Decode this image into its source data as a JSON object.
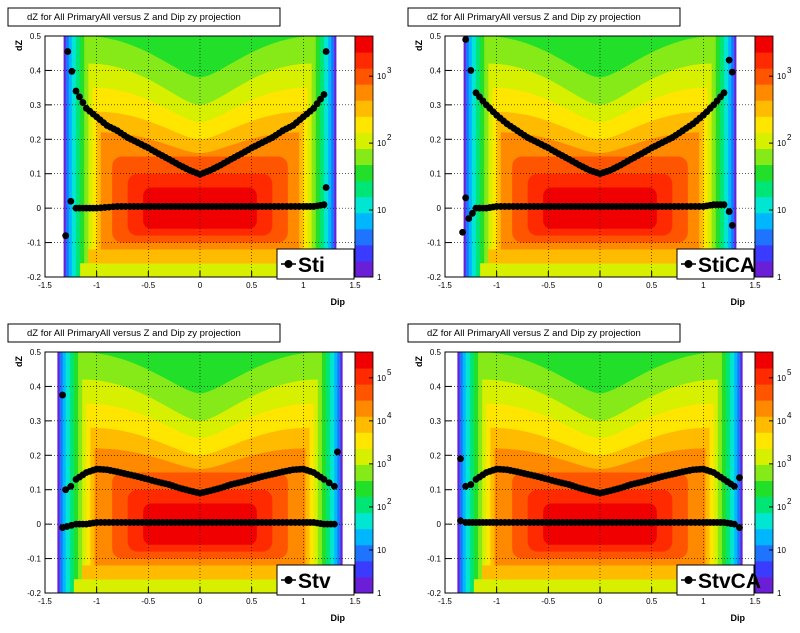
{
  "footer_text": "",
  "chart_data": [
    {
      "type": "heatmap",
      "title": "dZ for All PrimaryAll versus Z and Dip zy projection",
      "xlabel": "Dip",
      "ylabel": "dZ",
      "xlim": [
        -1.5,
        1.5
      ],
      "ylim": [
        -0.2,
        0.5
      ],
      "xticks": [
        "-1.5",
        "-1",
        "-0.5",
        "0",
        "0.5",
        "1",
        "1.5"
      ],
      "yticks": [
        "-0.2",
        "-0.1",
        "0",
        "0.1",
        "0.2",
        "0.3",
        "0.4",
        "0.5"
      ],
      "zscale": "log",
      "zticks": [
        "1",
        "10",
        "10 2",
        "10 3"
      ],
      "legend": "Sti",
      "grid": true,
      "series": [
        {
          "role": "sigma",
          "x": [
            -1.28,
            -1.2,
            -1.1,
            -1.0,
            -0.9,
            -0.8,
            -0.7,
            -0.6,
            -0.5,
            -0.4,
            -0.3,
            -0.2,
            -0.1,
            0,
            0.1,
            0.2,
            0.3,
            0.4,
            0.5,
            0.6,
            0.7,
            0.8,
            0.9,
            1.0,
            1.1,
            1.2,
            1.22
          ],
          "y": [
            0.455,
            0.34,
            0.29,
            0.265,
            0.24,
            0.225,
            0.205,
            0.19,
            0.175,
            0.158,
            0.142,
            0.125,
            0.11,
            0.098,
            0.11,
            0.125,
            0.142,
            0.158,
            0.175,
            0.19,
            0.205,
            0.225,
            0.24,
            0.265,
            0.29,
            0.33,
            0.455
          ]
        },
        {
          "role": "mean",
          "x": [
            -1.3,
            -1.25,
            -1.2,
            -1.1,
            -1.0,
            -0.8,
            -0.6,
            -0.4,
            -0.2,
            0,
            0.2,
            0.4,
            0.6,
            0.8,
            1.0,
            1.1,
            1.2,
            1.22
          ],
          "y": [
            -0.08,
            0.02,
            0.0,
            0.0,
            0.0,
            0.005,
            0.005,
            0.005,
            0.005,
            0.005,
            0.005,
            0.005,
            0.005,
            0.005,
            0.005,
            0.005,
            0.01,
            0.06
          ]
        }
      ]
    },
    {
      "type": "heatmap",
      "title": "dZ for All PrimaryAll versus Z and Dip zy projection",
      "xlabel": "Dip",
      "ylabel": "dZ",
      "xlim": [
        -1.5,
        1.5
      ],
      "ylim": [
        -0.2,
        0.5
      ],
      "xticks": [
        "-1.5",
        "-1",
        "-0.5",
        "0",
        "0.5",
        "1",
        "1.5"
      ],
      "yticks": [
        "-0.2",
        "-0.1",
        "0",
        "0.1",
        "0.2",
        "0.3",
        "0.4",
        "0.5"
      ],
      "zscale": "log",
      "zticks": [
        "1",
        "10",
        "10 2",
        "10 3"
      ],
      "legend": "StiCA",
      "grid": true,
      "series": [
        {
          "role": "sigma",
          "x": [
            -1.3,
            -1.25,
            -1.2,
            -1.1,
            -1.0,
            -0.9,
            -0.8,
            -0.7,
            -0.6,
            -0.5,
            -0.4,
            -0.3,
            -0.2,
            -0.1,
            0,
            0.1,
            0.2,
            0.3,
            0.4,
            0.5,
            0.6,
            0.7,
            0.8,
            0.9,
            1.0,
            1.1,
            1.2,
            1.25,
            1.28
          ],
          "y": [
            0.49,
            0.4,
            0.335,
            0.3,
            0.27,
            0.245,
            0.225,
            0.205,
            0.19,
            0.175,
            0.158,
            0.142,
            0.125,
            0.11,
            0.1,
            0.11,
            0.125,
            0.142,
            0.158,
            0.175,
            0.19,
            0.205,
            0.225,
            0.245,
            0.27,
            0.3,
            0.335,
            0.43,
            0.395
          ]
        },
        {
          "role": "mean",
          "x": [
            -1.33,
            -1.3,
            -1.27,
            -1.2,
            -1.1,
            -1.0,
            -0.8,
            -0.6,
            -0.4,
            -0.2,
            0,
            0.2,
            0.4,
            0.6,
            0.8,
            1.0,
            1.1,
            1.2,
            1.25,
            1.28
          ],
          "y": [
            -0.07,
            0.03,
            -0.03,
            0.0,
            0.0,
            0.005,
            0.005,
            0.005,
            0.005,
            0.005,
            0.005,
            0.005,
            0.005,
            0.005,
            0.005,
            0.005,
            0.01,
            0.01,
            -0.01,
            -0.05
          ]
        }
      ]
    },
    {
      "type": "heatmap",
      "title": "dZ for All PrimaryAll versus Z and Dip zy projection",
      "xlabel": "Dip",
      "ylabel": "dZ",
      "xlim": [
        -1.5,
        1.5
      ],
      "ylim": [
        -0.2,
        0.5
      ],
      "xticks": [
        "-1.5",
        "-1",
        "-0.5",
        "0",
        "0.5",
        "1",
        "1.5"
      ],
      "yticks": [
        "-0.2",
        "-0.1",
        "0",
        "0.1",
        "0.2",
        "0.3",
        "0.4",
        "0.5"
      ],
      "zscale": "log",
      "zticks": [
        "1",
        "10",
        "10 2",
        "10 3",
        "10 4",
        "10 5"
      ],
      "legend": "Stv",
      "grid": true,
      "series": [
        {
          "role": "sigma",
          "x": [
            -1.33,
            -1.3,
            -1.25,
            -1.2,
            -1.1,
            -1.0,
            -0.9,
            -0.8,
            -0.7,
            -0.6,
            -0.5,
            -0.4,
            -0.3,
            -0.2,
            -0.1,
            0,
            0.1,
            0.2,
            0.3,
            0.4,
            0.5,
            0.6,
            0.7,
            0.8,
            0.9,
            1.0,
            1.1,
            1.2,
            1.25,
            1.3,
            1.33
          ],
          "y": [
            0.375,
            0.1,
            0.11,
            0.13,
            0.15,
            0.16,
            0.158,
            0.152,
            0.145,
            0.138,
            0.13,
            0.122,
            0.115,
            0.105,
            0.097,
            0.09,
            0.097,
            0.105,
            0.115,
            0.122,
            0.13,
            0.138,
            0.145,
            0.152,
            0.158,
            0.16,
            0.15,
            0.13,
            0.12,
            0.11,
            0.21
          ]
        },
        {
          "role": "mean",
          "x": [
            -1.33,
            -1.2,
            -1.1,
            -1.0,
            -0.8,
            -0.6,
            -0.4,
            -0.2,
            0,
            0.2,
            0.4,
            0.6,
            0.8,
            1.0,
            1.1,
            1.2,
            1.3
          ],
          "y": [
            -0.01,
            0.0,
            0.0,
            0.005,
            0.005,
            0.005,
            0.005,
            0.005,
            0.005,
            0.005,
            0.005,
            0.005,
            0.005,
            0.005,
            0.005,
            0.0,
            0.0
          ]
        }
      ]
    },
    {
      "type": "heatmap",
      "title": "dZ for All PrimaryAll versus Z and Dip zy projection",
      "xlabel": "Dip",
      "ylabel": "dZ",
      "xlim": [
        -1.5,
        1.5
      ],
      "ylim": [
        -0.2,
        0.5
      ],
      "xticks": [
        "-1.5",
        "-1",
        "-0.5",
        "0",
        "0.5",
        "1",
        "1.5"
      ],
      "yticks": [
        "-0.2",
        "-0.1",
        "0",
        "0.1",
        "0.2",
        "0.3",
        "0.4",
        "0.5"
      ],
      "zscale": "log",
      "zticks": [
        "1",
        "10",
        "10 2",
        "10 3",
        "10 4",
        "10 5"
      ],
      "legend": "StvCA",
      "grid": true,
      "series": [
        {
          "role": "sigma",
          "x": [
            -1.35,
            -1.3,
            -1.25,
            -1.2,
            -1.1,
            -1.0,
            -0.9,
            -0.8,
            -0.7,
            -0.6,
            -0.5,
            -0.4,
            -0.3,
            -0.2,
            -0.1,
            0,
            0.1,
            0.2,
            0.3,
            0.4,
            0.5,
            0.6,
            0.7,
            0.8,
            0.9,
            1.0,
            1.1,
            1.2,
            1.3,
            1.35
          ],
          "y": [
            0.19,
            0.11,
            0.115,
            0.13,
            0.15,
            0.16,
            0.158,
            0.152,
            0.145,
            0.138,
            0.13,
            0.122,
            0.115,
            0.105,
            0.097,
            0.09,
            0.097,
            0.105,
            0.115,
            0.122,
            0.13,
            0.138,
            0.145,
            0.152,
            0.158,
            0.16,
            0.15,
            0.13,
            0.11,
            0.135
          ]
        },
        {
          "role": "mean",
          "x": [
            -1.35,
            -1.3,
            -1.2,
            -1.1,
            -1.0,
            -0.8,
            -0.6,
            -0.4,
            -0.2,
            0,
            0.2,
            0.4,
            0.6,
            0.8,
            1.0,
            1.1,
            1.2,
            1.3,
            1.35
          ],
          "y": [
            0.01,
            0.005,
            0.005,
            0.005,
            0.005,
            0.005,
            0.005,
            0.005,
            0.005,
            0.005,
            0.005,
            0.005,
            0.005,
            0.005,
            0.005,
            0.005,
            0.005,
            0.0,
            -0.01
          ]
        }
      ]
    }
  ]
}
